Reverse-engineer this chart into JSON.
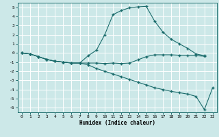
{
  "xlabel": "Humidex (Indice chaleur)",
  "bg_color": "#cce8e8",
  "grid_color": "#ffffff",
  "line_color": "#1a6b6b",
  "marker": "+",
  "xlim": [
    -0.5,
    23.5
  ],
  "ylim": [
    -6.5,
    5.5
  ],
  "xticks": [
    0,
    1,
    2,
    3,
    4,
    5,
    6,
    7,
    8,
    9,
    10,
    11,
    12,
    13,
    14,
    15,
    16,
    17,
    18,
    19,
    20,
    21,
    22,
    23
  ],
  "yticks": [
    -6,
    -5,
    -4,
    -3,
    -2,
    -1,
    0,
    1,
    2,
    3,
    4,
    5
  ],
  "line1_x": [
    0,
    1,
    2,
    3,
    4,
    5,
    6,
    7,
    8,
    9,
    10,
    11,
    12,
    13,
    14,
    15,
    16,
    17,
    18,
    19,
    20,
    21,
    22
  ],
  "line1_y": [
    0,
    -0.1,
    -0.4,
    -0.7,
    -0.9,
    -1.0,
    -1.1,
    -1.1,
    -1.1,
    -1.1,
    -1.15,
    -1.1,
    -1.15,
    -1.1,
    -0.75,
    -0.4,
    -0.2,
    -0.2,
    -0.2,
    -0.25,
    -0.3,
    -0.3,
    -0.35
  ],
  "line2_x": [
    0,
    1,
    2,
    3,
    4,
    5,
    6,
    7,
    8,
    9,
    10,
    11,
    12,
    13,
    14,
    15,
    16,
    17,
    18,
    19,
    20,
    21,
    22
  ],
  "line2_y": [
    0,
    -0.1,
    -0.4,
    -0.7,
    -0.9,
    -1.0,
    -1.1,
    -1.1,
    -0.3,
    0.3,
    2.0,
    4.2,
    4.65,
    4.95,
    5.05,
    5.1,
    3.5,
    2.3,
    1.5,
    1.0,
    0.5,
    -0.1,
    -0.3
  ],
  "line3_x": [
    0,
    1,
    2,
    3,
    4,
    5,
    6,
    7,
    8,
    9,
    10,
    11,
    12,
    13,
    14,
    15,
    16,
    17,
    18,
    19,
    20,
    21,
    22,
    23
  ],
  "line3_y": [
    0,
    -0.1,
    -0.4,
    -0.7,
    -0.9,
    -1.0,
    -1.1,
    -1.1,
    -1.3,
    -1.7,
    -2.0,
    -2.3,
    -2.6,
    -2.9,
    -3.2,
    -3.5,
    -3.8,
    -4.0,
    -4.2,
    -4.35,
    -4.5,
    -4.75,
    -6.2,
    -3.8
  ]
}
